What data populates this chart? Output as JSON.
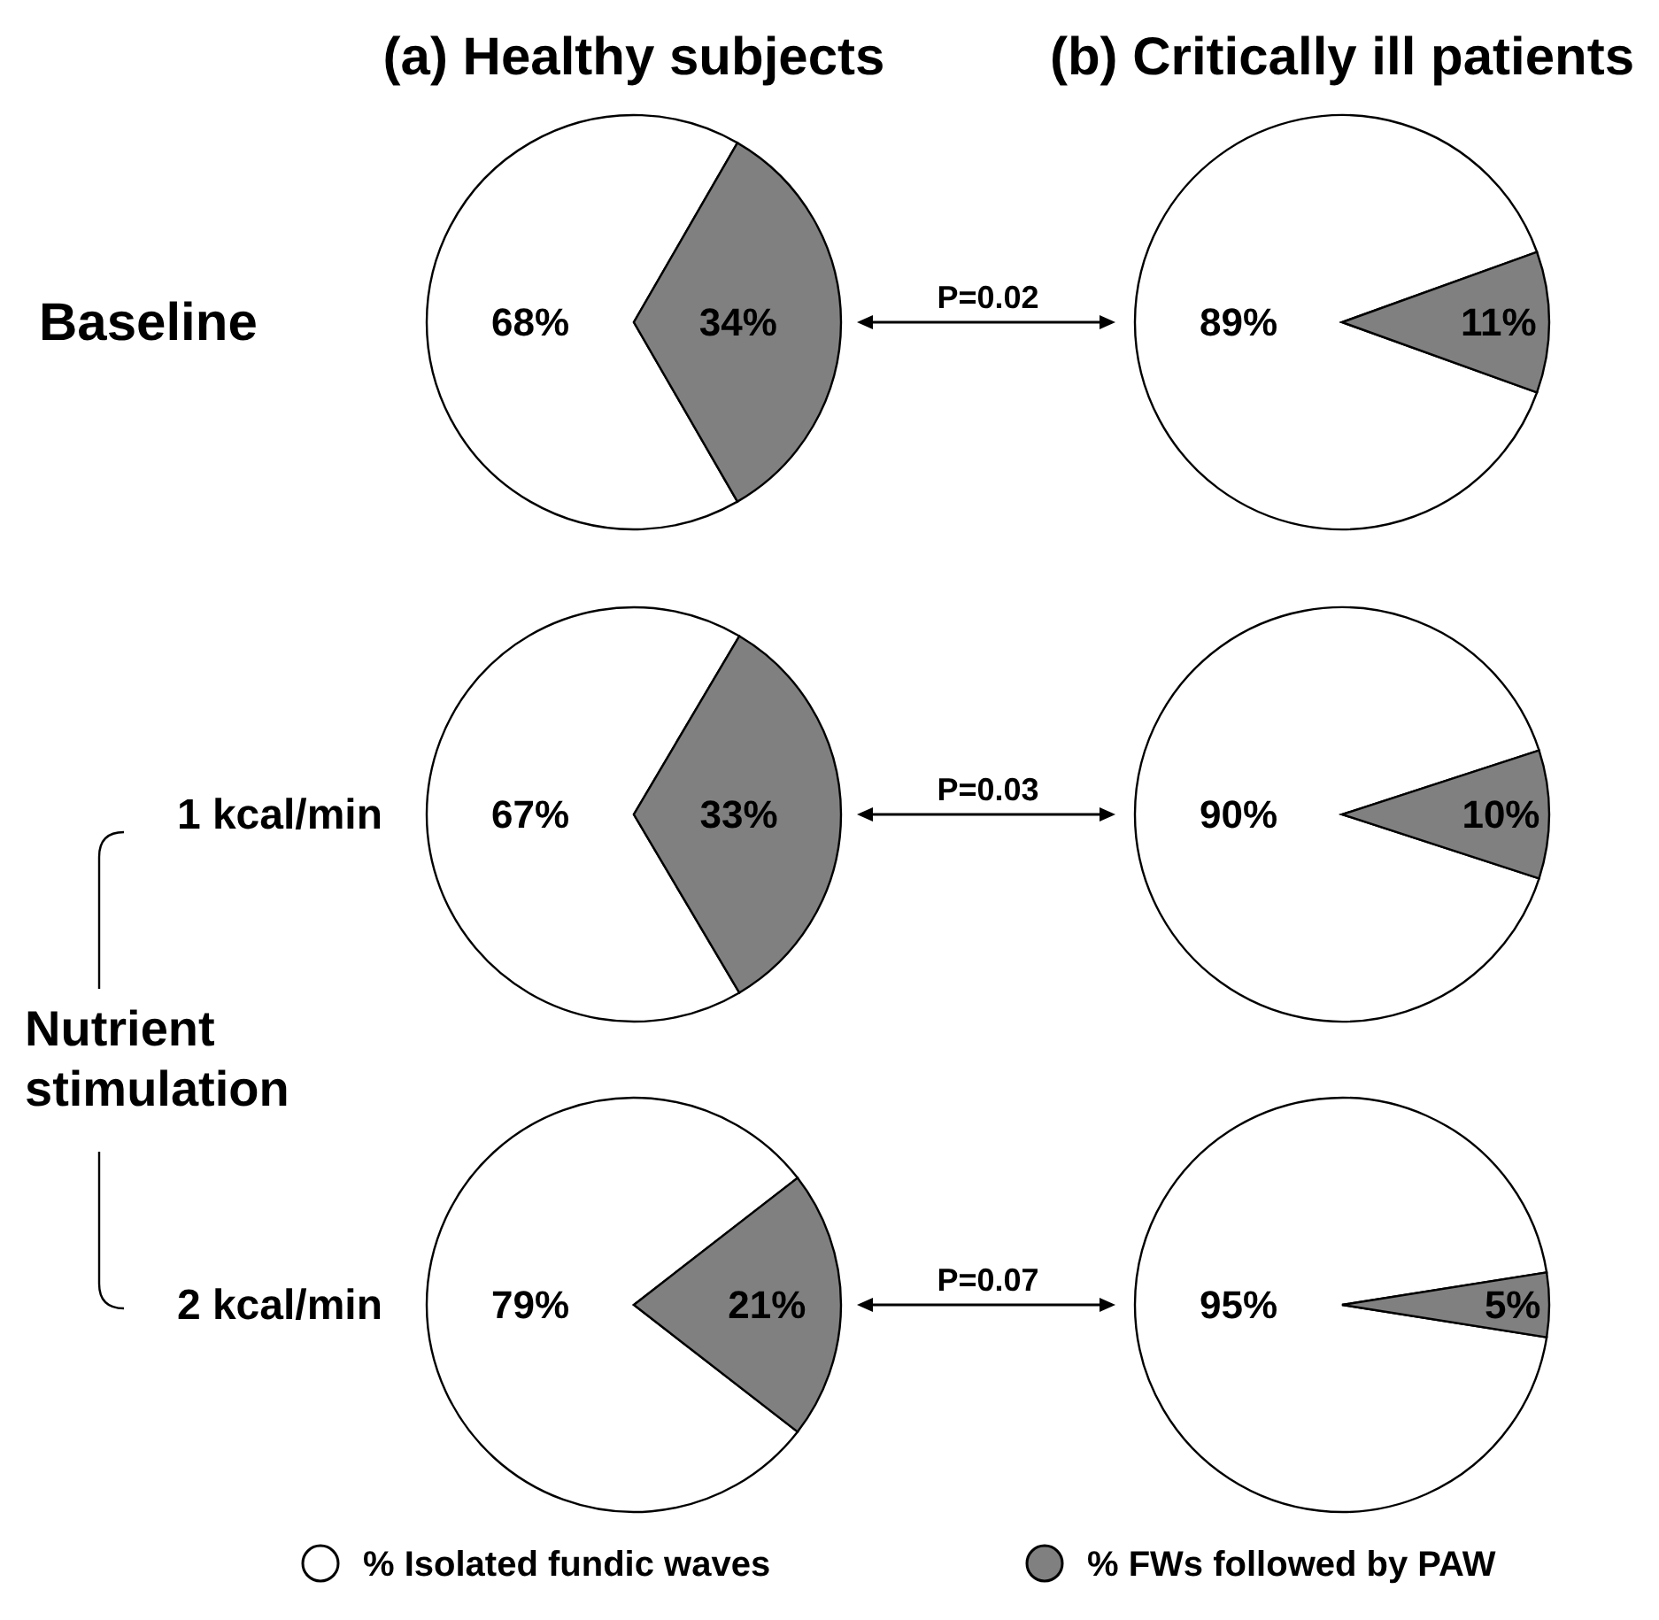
{
  "chart_data": [
    {
      "type": "pie",
      "title": "(a) Healthy subjects",
      "categories": [
        null,
        null
      ],
      "values": [
        68,
        34
      ],
      "colors": [
        "#ffffff",
        "#808080"
      ],
      "value_labels": [
        "68%",
        "34%"
      ],
      "annotations": [
        "Baseline"
      ]
    },
    {
      "type": "pie",
      "title": "(b) Critically ill patients",
      "categories": [
        null,
        null
      ],
      "values": [
        89,
        11
      ],
      "colors": [
        "#ffffff",
        "#808080"
      ],
      "value_labels": [
        "89%",
        "11%"
      ],
      "annotations": [
        "P=0.02"
      ]
    },
    {
      "type": "pie",
      "categories": [
        null,
        null
      ],
      "values": [
        67,
        33
      ],
      "colors": [
        "#ffffff",
        "#808080"
      ],
      "value_labels": [
        "67%",
        "33%"
      ],
      "annotations": [
        "1 kcal/min",
        "Nutrient stimulation"
      ]
    },
    {
      "type": "pie",
      "categories": [
        null,
        null
      ],
      "values": [
        90,
        10
      ],
      "colors": [
        "#ffffff",
        "#808080"
      ],
      "value_labels": [
        "90%",
        "10%"
      ],
      "annotations": [
        "P=0.03"
      ]
    },
    {
      "type": "pie",
      "categories": [
        "% Isolated fundic waves",
        "% FWs followed by PAW"
      ],
      "values": [
        79,
        21
      ],
      "colors": [
        "#ffffff",
        "#808080"
      ],
      "value_labels": [
        "79%",
        "21%"
      ],
      "annotations": [
        "2 kcal/min"
      ],
      "legend": "bottom"
    },
    {
      "type": "pie",
      "categories": [
        null,
        null
      ],
      "values": [
        95,
        5
      ],
      "colors": [
        "#ffffff",
        "#808080"
      ],
      "value_labels": [
        "95%",
        "5%"
      ],
      "annotations": [
        "P=0.07"
      ]
    }
  ]
}
